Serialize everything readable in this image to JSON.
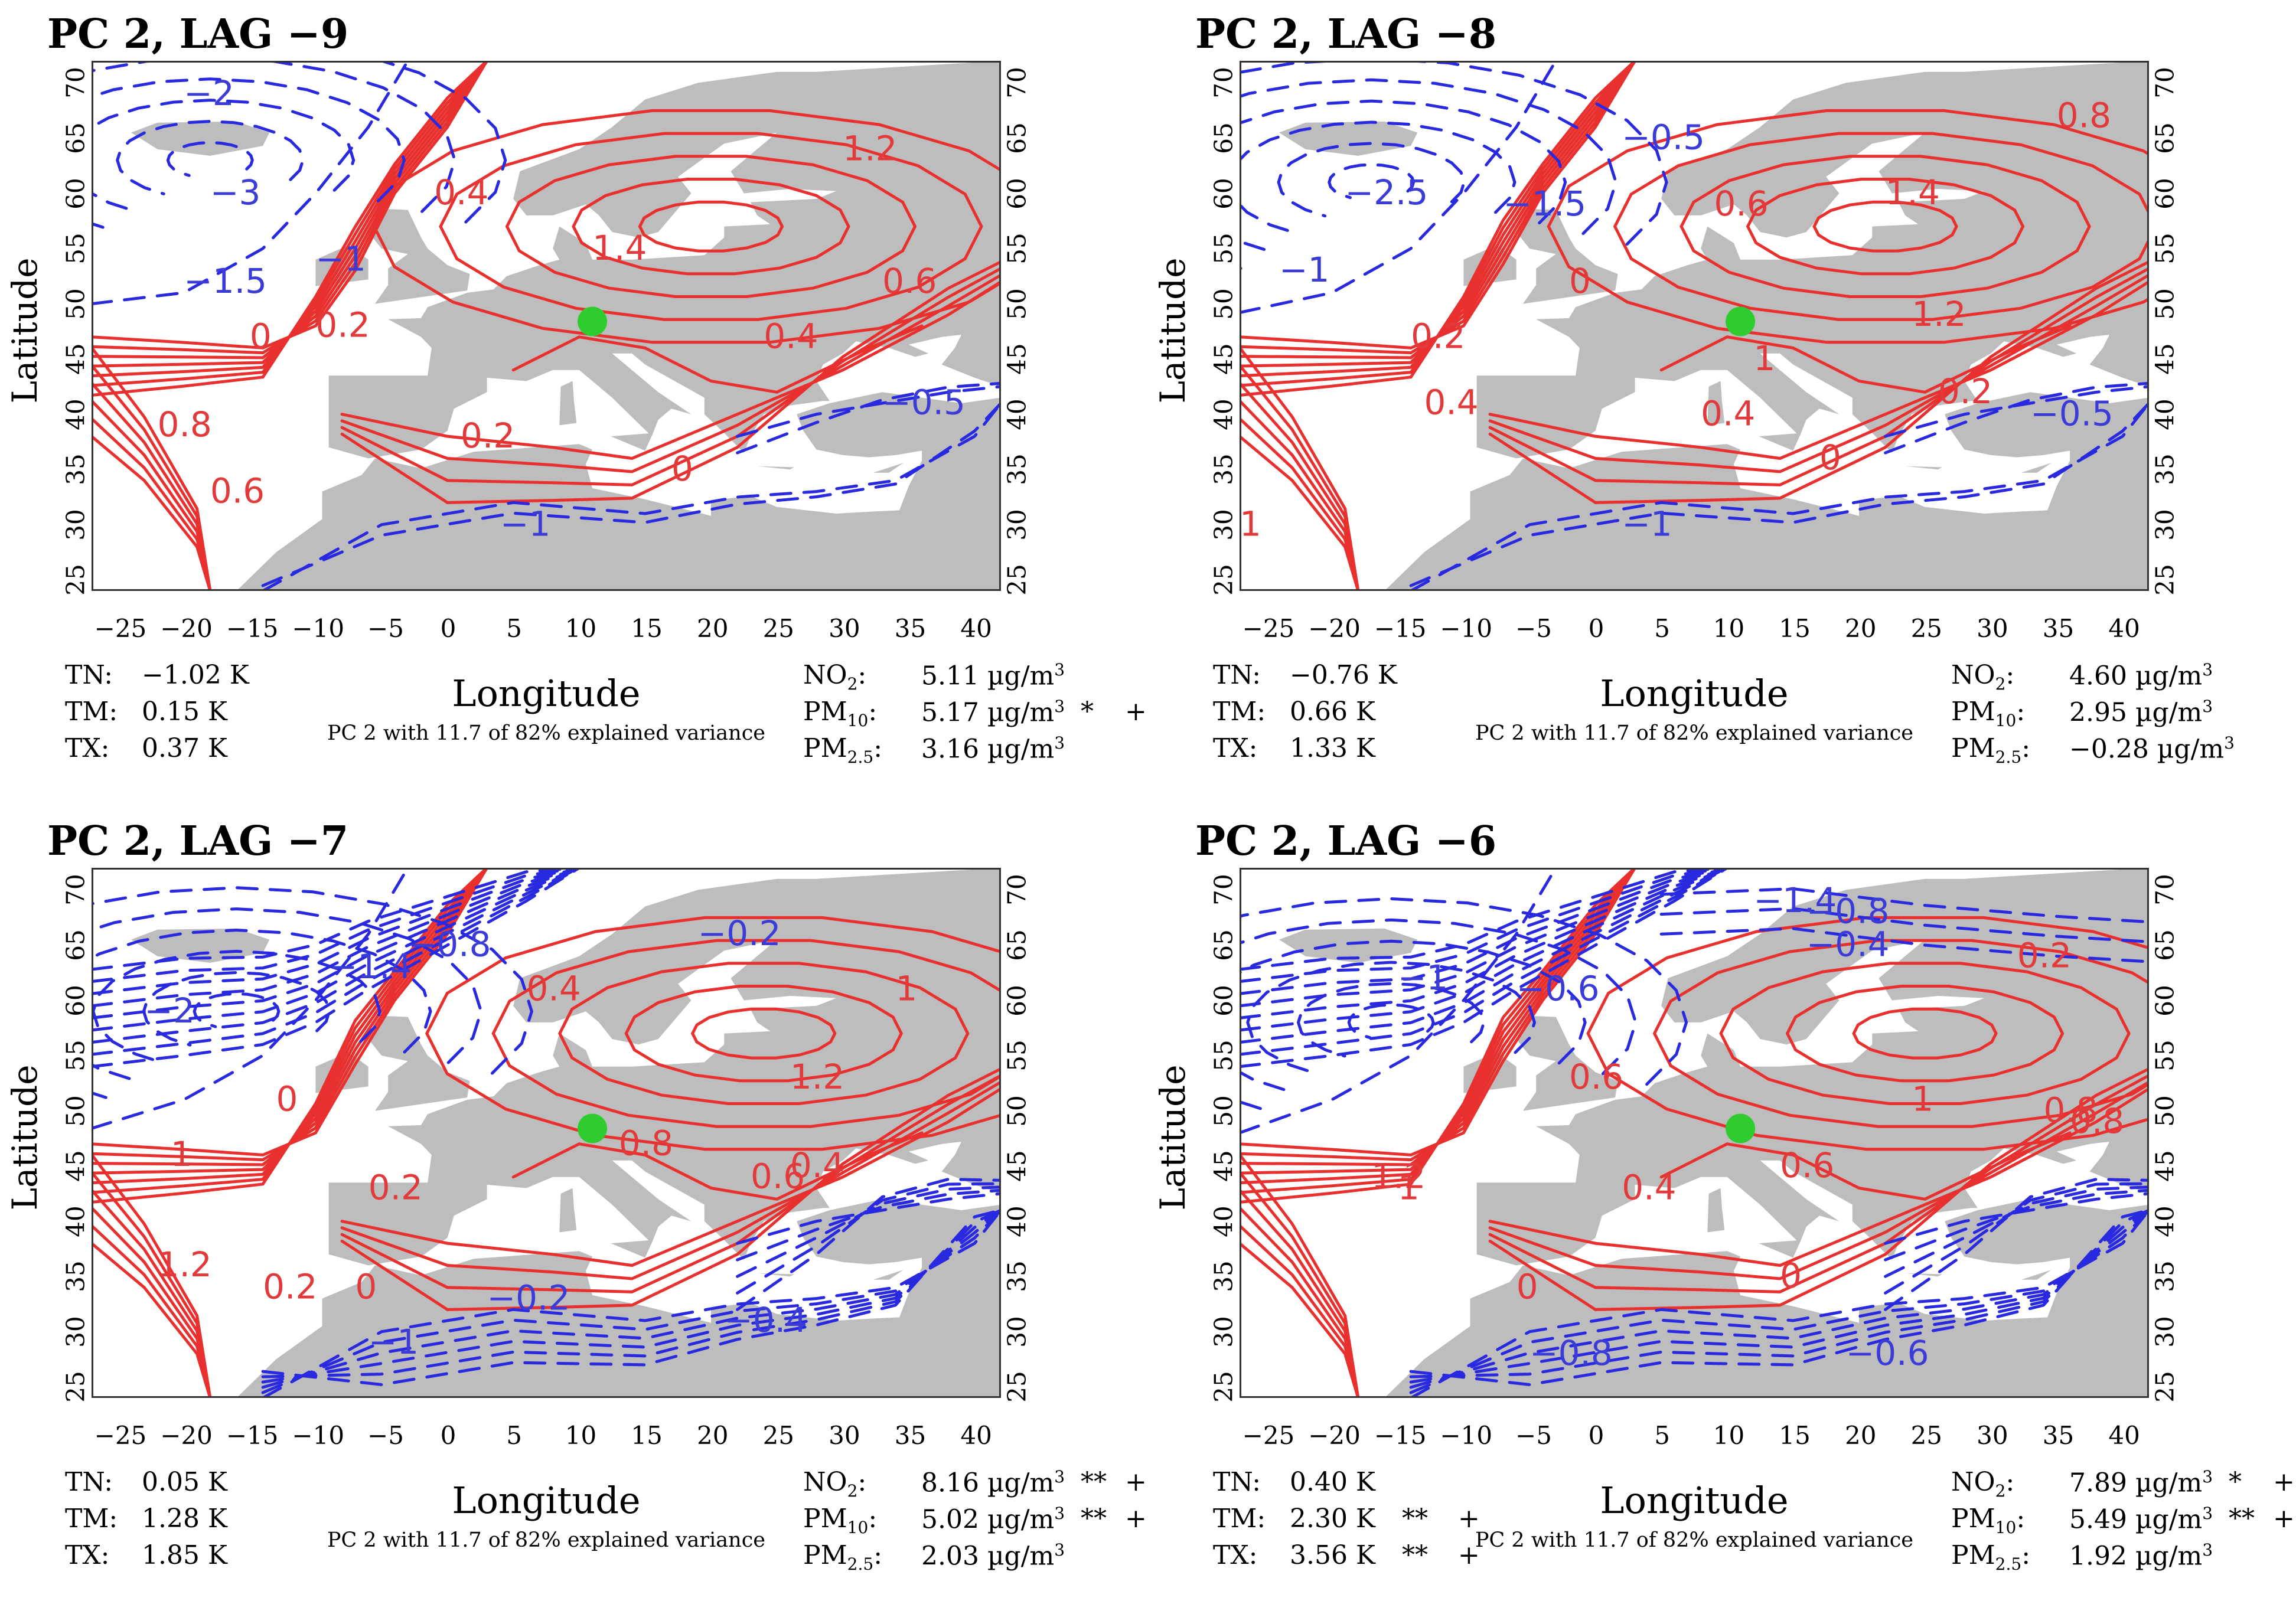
{
  "figure": {
    "ylabel": "Latitude",
    "xlabel": "Longitude",
    "subtitle": "PC 2 with 11.7 of 82% explained variance",
    "x_ticks": [
      "−25",
      "−20",
      "−15",
      "−10",
      "−5",
      "0",
      "5",
      "10",
      "15",
      "20",
      "25",
      "30",
      "35",
      "40"
    ],
    "y_ticks": [
      "25",
      "30",
      "35",
      "40",
      "45",
      "50",
      "55",
      "60",
      "65",
      "70"
    ],
    "colors": {
      "positive": "#e8302e",
      "negative": "#2929e0",
      "land": "#bdbdbd",
      "marker": "#2ecc2e"
    }
  },
  "panels": [
    {
      "title": "PC 2, LAG −9",
      "temps": [
        {
          "label": "TN:",
          "value": "−1.02 K",
          "sig": "",
          "plus": ""
        },
        {
          "label": "TM:",
          "value": "0.15  K",
          "sig": "",
          "plus": ""
        },
        {
          "label": "TX:",
          "value": "0.37  K",
          "sig": "",
          "plus": ""
        }
      ],
      "pollutants": [
        {
          "label": "NO",
          "sub": "2",
          "value": "5.11 µg/m",
          "sig": "",
          "plus": ""
        },
        {
          "label": "PM",
          "sub": "10",
          "value": "5.17 µg/m",
          "sig": "*",
          "plus": "+"
        },
        {
          "label": "PM",
          "sub": "2.5",
          "value": "3.16 µg/m",
          "sig": "",
          "plus": ""
        }
      ],
      "contour_labels": [
        "−2",
        "−3",
        "−1.5",
        "−1",
        "0",
        "0.2",
        "0.4",
        "0.8",
        "0.6",
        "1.4",
        "1.2",
        "0.6",
        "0.4",
        "0.2",
        "−0.5",
        "−1",
        "0"
      ]
    },
    {
      "title": "PC 2, LAG −8",
      "temps": [
        {
          "label": "TN:",
          "value": "−0.76 K",
          "sig": "",
          "plus": ""
        },
        {
          "label": "TM:",
          "value": "0.66   K",
          "sig": "",
          "plus": ""
        },
        {
          "label": "TX:",
          "value": "1.33   K",
          "sig": "",
          "plus": ""
        }
      ],
      "pollutants": [
        {
          "label": "NO",
          "sub": "2",
          "value": "4.60  µg/m",
          "sig": "",
          "plus": ""
        },
        {
          "label": "PM",
          "sub": "10",
          "value": "2.95  µg/m",
          "sig": "",
          "plus": ""
        },
        {
          "label": "PM",
          "sub": "2.5",
          "value": "−0.28 µg/m",
          "sig": "",
          "plus": ""
        }
      ],
      "contour_labels": [
        "−2.5",
        "−1.5",
        "−0.5",
        "−1",
        "0",
        "0.2",
        "0.4",
        "0.6",
        "0.8",
        "1.4",
        "1.2",
        "1",
        "0.4",
        "0.2",
        "−0.5",
        "−1",
        "0",
        "1"
      ]
    },
    {
      "title": "PC 2, LAG −7",
      "temps": [
        {
          "label": "TN:",
          "value": "0.05 K",
          "sig": "",
          "plus": ""
        },
        {
          "label": "TM:",
          "value": "1.28 K",
          "sig": "",
          "plus": ""
        },
        {
          "label": "TX:",
          "value": "1.85 K",
          "sig": "",
          "plus": ""
        }
      ],
      "pollutants": [
        {
          "label": "NO",
          "sub": "2",
          "value": "8.16 µg/m",
          "sig": "**",
          "plus": "+"
        },
        {
          "label": "PM",
          "sub": "10",
          "value": "5.02 µg/m",
          "sig": "**",
          "plus": "+"
        },
        {
          "label": "PM",
          "sub": "2.5",
          "value": "2.03 µg/m",
          "sig": "",
          "plus": ""
        }
      ],
      "contour_labels": [
        "−2",
        "−1.4",
        "−0.8",
        "−0.2",
        "0",
        "1",
        "0.2",
        "0.4",
        "1",
        "1.2",
        "0.8",
        "0.4",
        "0.6",
        "1.2",
        "0.2",
        "0",
        "−0.2",
        "−0.4",
        "−1"
      ]
    },
    {
      "title": "PC 2, LAG −6",
      "temps": [
        {
          "label": "TN:",
          "value": "0.40 K",
          "sig": "",
          "plus": ""
        },
        {
          "label": "TM:",
          "value": "2.30 K",
          "sig": "**",
          "plus": "+"
        },
        {
          "label": "TX:",
          "value": "3.56 K",
          "sig": "**",
          "plus": "+"
        }
      ],
      "pollutants": [
        {
          "label": "NO",
          "sub": "2",
          "value": "7.89 µg/m",
          "sig": "*",
          "plus": "+"
        },
        {
          "label": "PM",
          "sub": "10",
          "value": "5.49 µg/m",
          "sig": "**",
          "plus": "+"
        },
        {
          "label": "PM",
          "sub": "2.5",
          "value": "1.92 µg/m",
          "sig": "",
          "plus": ""
        }
      ],
      "contour_labels": [
        "−1.4",
        "−0.8",
        "−1",
        "−0.6",
        "−0.4",
        "0.2",
        "0.6",
        "1.2",
        "0.8",
        "1",
        "0.4",
        "0.6",
        "0.8",
        "0",
        "−0.8",
        "−0.6",
        "0",
        "1"
      ]
    }
  ]
}
